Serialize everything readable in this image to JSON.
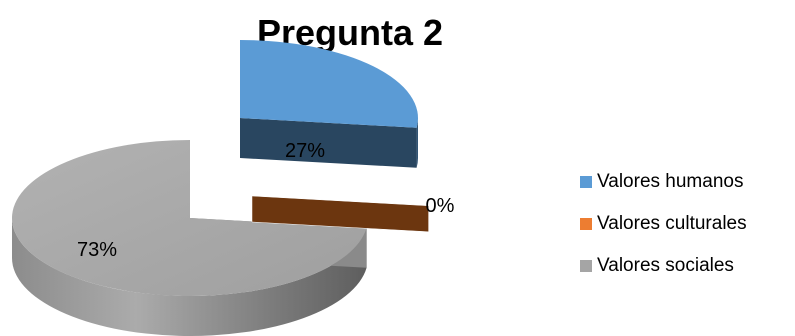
{
  "chart_data": {
    "type": "pie",
    "title": "Pregunta 2",
    "categories": [
      "Valores humanos",
      "Valores culturales",
      "Valores sociales"
    ],
    "values": [
      27,
      0,
      73
    ],
    "data_labels": [
      "27%",
      "0%",
      "73%"
    ],
    "colors": [
      "#5b9bd5",
      "#ed7d31",
      "#a5a5a5"
    ],
    "legend_position": "right",
    "style": "3d-exploded"
  }
}
